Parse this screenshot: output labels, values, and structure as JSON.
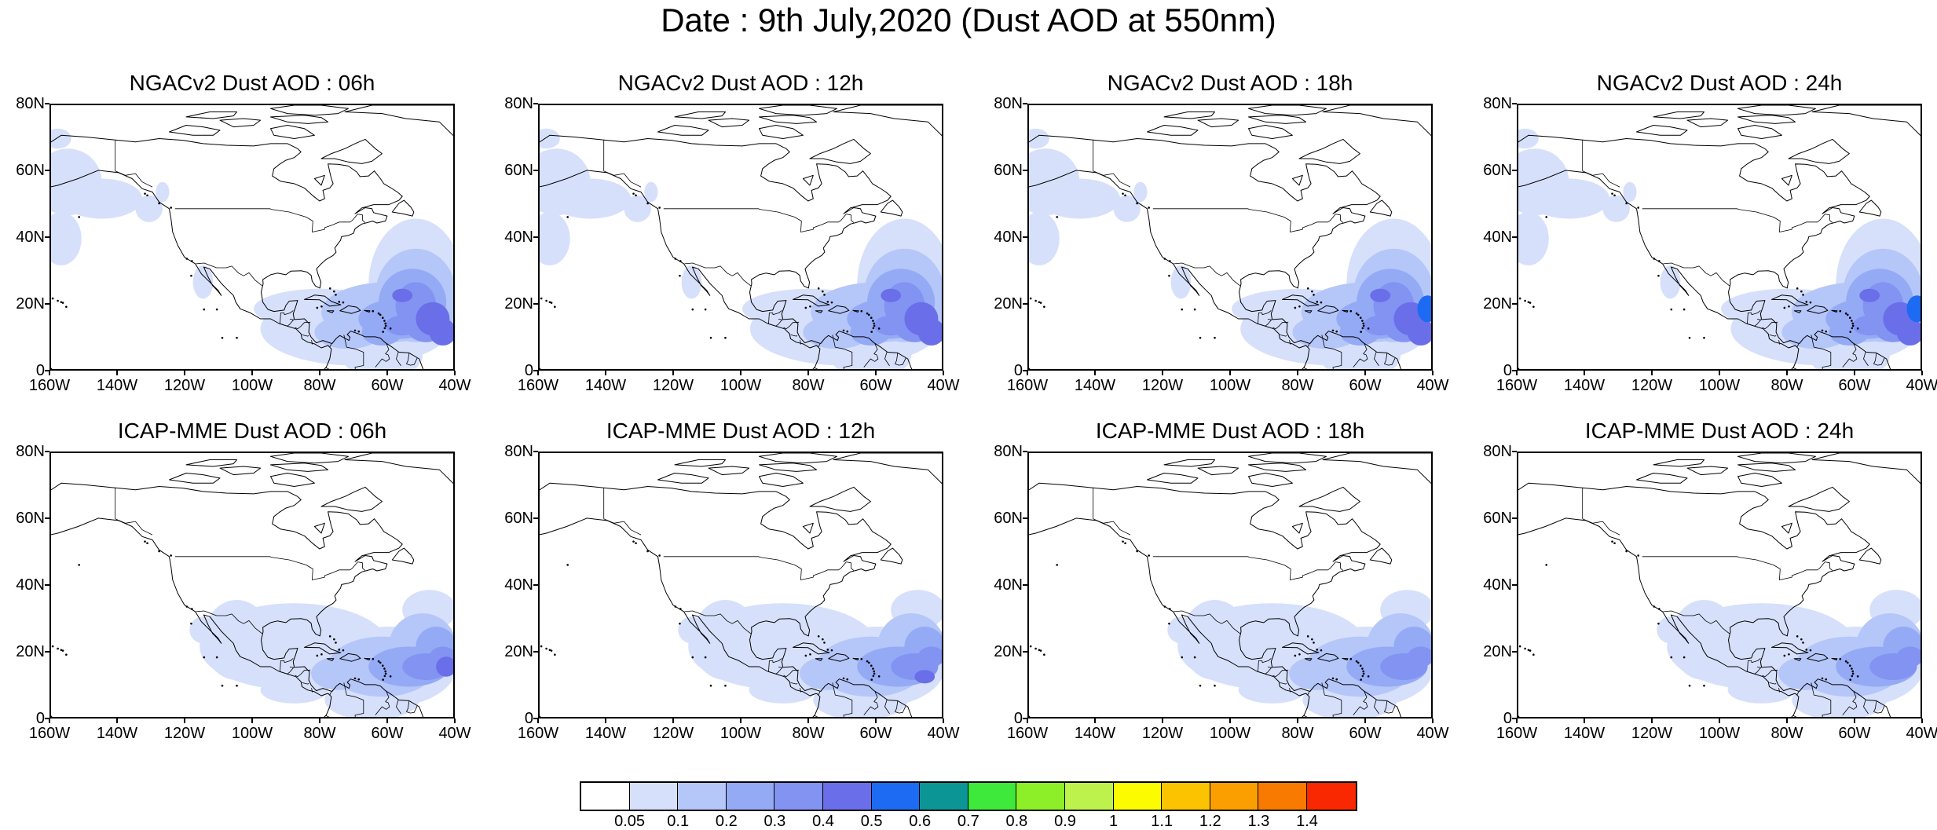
{
  "title": "Date : 9th July,2020 (Dust AOD at 550nm)",
  "panels": [
    {
      "title": "NGACv2 Dust AOD : 06h",
      "model": "ngac",
      "hour": "06h"
    },
    {
      "title": "NGACv2 Dust AOD : 12h",
      "model": "ngac",
      "hour": "12h"
    },
    {
      "title": "NGACv2 Dust AOD : 18h",
      "model": "ngac",
      "hour": "18h"
    },
    {
      "title": "NGACv2 Dust AOD : 24h",
      "model": "ngac",
      "hour": "24h"
    },
    {
      "title": "ICAP-MME Dust AOD : 06h",
      "model": "icap",
      "hour": "06h"
    },
    {
      "title": "ICAP-MME Dust AOD : 12h",
      "model": "icap",
      "hour": "12h"
    },
    {
      "title": "ICAP-MME Dust AOD : 18h",
      "model": "icap",
      "hour": "18h"
    },
    {
      "title": "ICAP-MME Dust AOD : 24h",
      "model": "icap",
      "hour": "24h"
    }
  ],
  "axes": {
    "lon_ticks": [
      "160W",
      "140W",
      "120W",
      "100W",
      "80W",
      "60W",
      "40W"
    ],
    "lat_ticks": [
      "80N",
      "60N",
      "40N",
      "20N",
      "0"
    ],
    "lon_range": [
      -160,
      -40
    ],
    "lat_range": [
      0,
      80
    ]
  },
  "colorbar": {
    "labels": [
      "0.05",
      "0.1",
      "0.2",
      "0.3",
      "0.4",
      "0.5",
      "0.6",
      "0.7",
      "0.8",
      "0.9",
      "1",
      "1.1",
      "1.2",
      "1.3",
      "1.4"
    ],
    "colors": [
      "#ffffff",
      "#d6e0fb",
      "#b5c6f8",
      "#94aaf5",
      "#8293f2",
      "#6a6ee9",
      "#1c6bf2",
      "#0c9595",
      "#3ee93c",
      "#8cef28",
      "#bdf24c",
      "#fdfb00",
      "#fcc300",
      "#fb9f00",
      "#f97a00",
      "#f92800"
    ]
  }
}
